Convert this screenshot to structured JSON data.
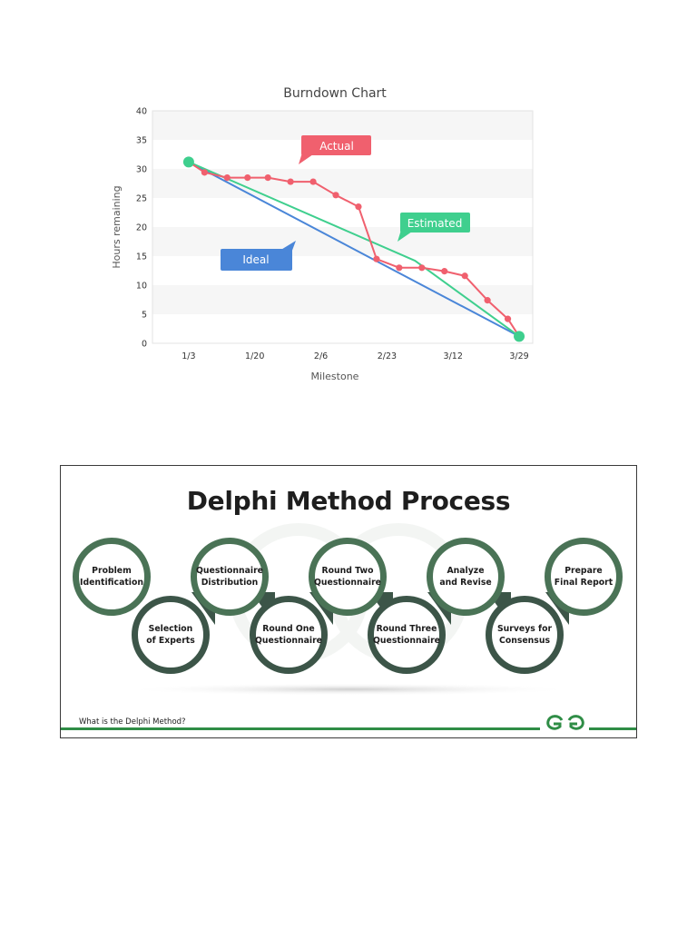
{
  "chart_data": {
    "type": "line",
    "title": "Burndown Chart",
    "xlabel": "Milestone",
    "ylabel": "Hours remaining",
    "x_ticks": [
      "1/3",
      "1/20",
      "2/6",
      "2/23",
      "3/12",
      "3/29"
    ],
    "ylim": [
      0,
      40
    ],
    "y_ticks": [
      0,
      5,
      10,
      15,
      20,
      25,
      30,
      35,
      40
    ],
    "grid": "alternating horizontal bands",
    "series": [
      {
        "name": "Actual",
        "color": "#f0606e",
        "points": [
          [
            1,
            31.2
          ],
          [
            1.35,
            29.4
          ],
          [
            1.85,
            28.5
          ],
          [
            2.3,
            28.5
          ],
          [
            2.75,
            28.5
          ],
          [
            3.25,
            27.8
          ],
          [
            3.75,
            27.8
          ],
          [
            4.25,
            25.5
          ],
          [
            4.75,
            23.5
          ],
          [
            5.15,
            14.5
          ],
          [
            5.65,
            13
          ],
          [
            6.15,
            13
          ],
          [
            6.65,
            12.4
          ],
          [
            7.1,
            11.6
          ],
          [
            7.6,
            7.4
          ],
          [
            8.05,
            4.2
          ],
          [
            8.3,
            1.2
          ]
        ]
      },
      {
        "name": "Estimated",
        "color": "#3fcf8e",
        "points": [
          [
            1,
            31.2
          ],
          [
            6.0,
            14.2
          ],
          [
            8.3,
            1.2
          ]
        ]
      },
      {
        "name": "Ideal",
        "color": "#4a86d8",
        "points": [
          [
            1,
            31.2
          ],
          [
            8.3,
            1.2
          ]
        ]
      }
    ],
    "start_marker": [
      1,
      31.2
    ],
    "end_marker": [
      8.3,
      1.2
    ]
  },
  "delphi": {
    "title": "Delphi Method Process",
    "top_row": [
      "Problem\nIdentification",
      "Questionnaire\nDistribution",
      "Round Two\nQuestionnaire",
      "Analyze\nand Revise",
      "Prepare\nFinal Report"
    ],
    "bottom_row": [
      "Selection\nof Experts",
      "Round One\nQuestionnaire",
      "Round Three\nQuestionnaire",
      "Surveys for\nConsensus"
    ],
    "footer_text": "What is the Delphi Method?",
    "logo": "GfG",
    "colors": {
      "ring": "#4a7356",
      "ring_dark": "#3c5548",
      "footer": "#2f8d46"
    }
  }
}
